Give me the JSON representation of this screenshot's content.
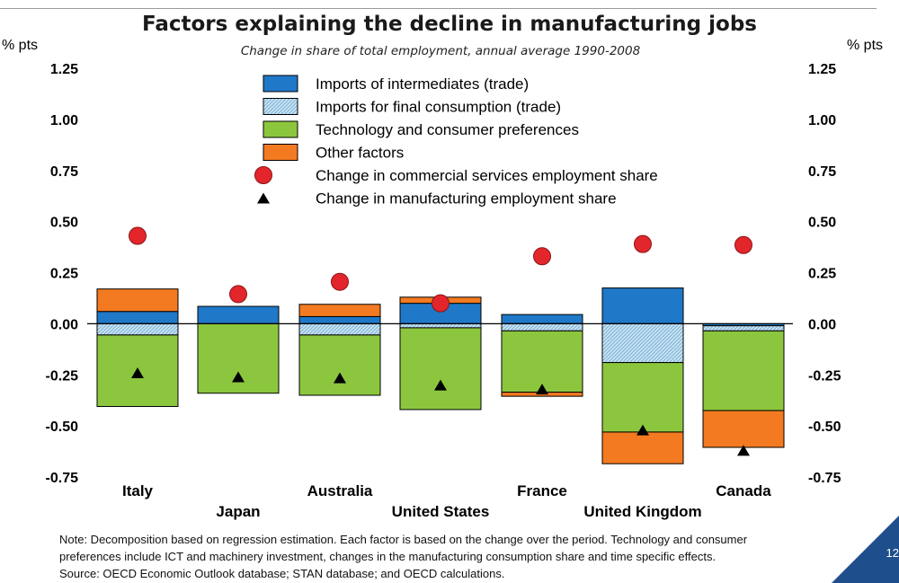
{
  "title": "Factors explaining the decline in manufacturing jobs",
  "subtitle": "Change in share of total employment, annual average 1990-2008",
  "axis_unit_left": "% pts",
  "axis_unit_right": "% pts",
  "note_lines": [
    "Note: Decomposition based on regression estimation. Each factor is based on the change over the period. Technology and consumer",
    "preferences include ICT and machinery investment, changes in the manufacturing consumption share and time specific effects.",
    "Source: OECD Economic Outlook database; STAN database; and OECD calculations."
  ],
  "page_number": "12",
  "colors": {
    "intermediates": "#1f78c8",
    "final": "#c9e3f2",
    "final_hatch": "#6fa8d0",
    "tech": "#8cc63e",
    "other": "#f37a21",
    "services": "#e3262b",
    "manufacturing": "#000000",
    "corner": "#1f4e8c"
  },
  "chart_data": {
    "type": "bar",
    "stacked": true,
    "categories": [
      "Italy",
      "Japan",
      "Australia",
      "United States",
      "France",
      "United Kingdom",
      "Canada"
    ],
    "ylim": [
      -0.75,
      1.25
    ],
    "yticks": [
      "1.25",
      "1.00",
      "0.75",
      "0.50",
      "0.25",
      "0.00",
      "-0.25",
      "-0.50",
      "-0.75"
    ],
    "ytick_values": [
      1.25,
      1.0,
      0.75,
      0.5,
      0.25,
      0.0,
      -0.25,
      -0.5,
      -0.75
    ],
    "legend_position": "top-center",
    "grid": false,
    "series": [
      {
        "key": "intermediates",
        "name": "Imports of intermediates (trade)",
        "values": [
          0.06,
          0.085,
          0.035,
          0.1,
          0.045,
          0.175,
          -0.01
        ]
      },
      {
        "key": "final",
        "name": "Imports for final consumption (trade)",
        "values": [
          -0.055,
          0.0,
          -0.055,
          -0.02,
          -0.035,
          -0.19,
          -0.025
        ]
      },
      {
        "key": "tech",
        "name": "Technology and consumer preferences",
        "values": [
          -0.35,
          -0.34,
          -0.295,
          -0.4,
          -0.3,
          -0.34,
          -0.39
        ]
      },
      {
        "key": "other",
        "name": "Other factors",
        "values": [
          0.11,
          0.0,
          0.06,
          0.03,
          -0.02,
          -0.155,
          -0.18
        ]
      }
    ],
    "markers": [
      {
        "key": "services",
        "name": "Change in commercial services employment share",
        "shape": "circle",
        "values": [
          0.43,
          0.145,
          0.205,
          0.1,
          0.33,
          0.39,
          0.385
        ]
      },
      {
        "key": "manufacturing",
        "name": "Change in manufacturing employment share",
        "shape": "triangle",
        "values": [
          -0.24,
          -0.26,
          -0.265,
          -0.3,
          -0.32,
          -0.52,
          -0.62
        ]
      }
    ]
  }
}
